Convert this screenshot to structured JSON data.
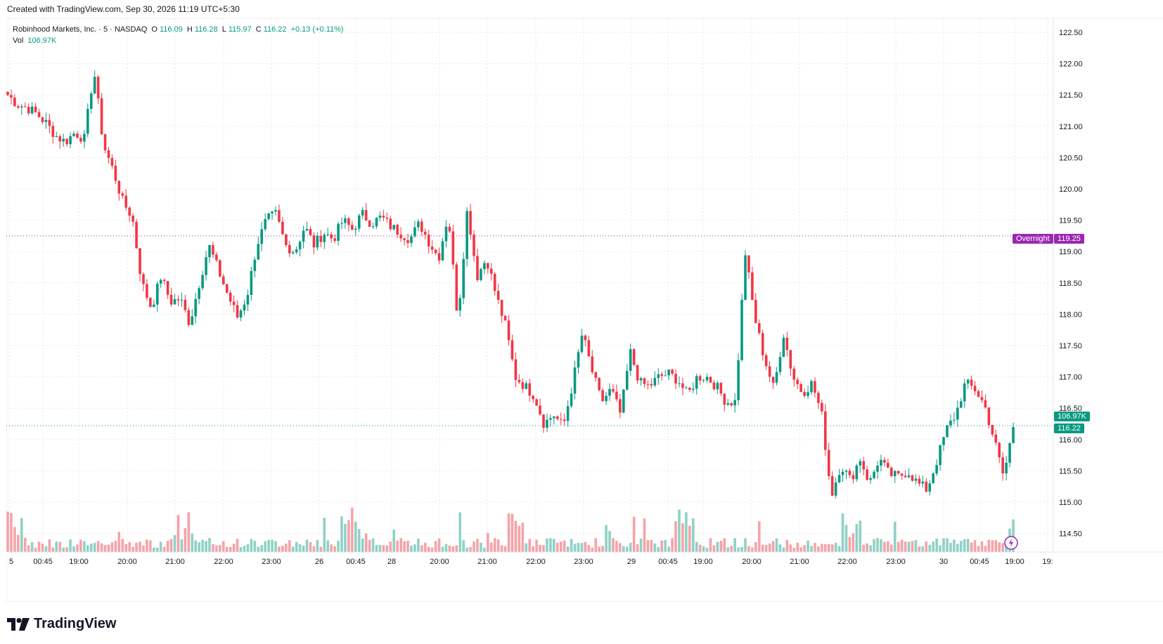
{
  "header": {
    "created_text": "Created with TradingView.com, Sep 30, 2026 11:19 UTC+5:30"
  },
  "legend": {
    "symbol": "Robinhood Markets, Inc. · 5 · NASDAQ",
    "o_label": "O",
    "o_value": "116.09",
    "h_label": "H",
    "h_value": "116.28",
    "l_label": "L",
    "l_value": "115.97",
    "c_label": "C",
    "c_value": "116.22",
    "change": "+0.13 (+0.11%)",
    "vol_label": "Vol",
    "vol_value": "106.97K"
  },
  "flags": {
    "overnight_label": "Overnight",
    "overnight_value": "119.25",
    "volume_value": "106.97K",
    "last_price": "116.22"
  },
  "footer": {
    "brand": "TradingView"
  },
  "colors": {
    "up": "#089981",
    "down": "#f23645",
    "up_vol": "#8fd1c6",
    "down_vol": "#f5a3a8",
    "overnight": "#9c27b0",
    "grid": "#e8eaee"
  },
  "chart_data": {
    "type": "candlestick",
    "symbol": "Robinhood Markets, Inc.",
    "interval": "5",
    "exchange": "NASDAQ",
    "y_axis_ticks": [
      "122.50",
      "122.00",
      "121.50",
      "121.00",
      "120.50",
      "120.00",
      "119.50",
      "119.00",
      "118.50",
      "118.00",
      "117.50",
      "117.00",
      "116.50",
      "116.00",
      "115.50",
      "115.00",
      "114.50"
    ],
    "x_axis_ticks": [
      "5",
      "00:45",
      "19:00",
      "20:00",
      "21:00",
      "22:00",
      "23:00",
      "26",
      "00:45",
      "28",
      "20:00",
      "21:00",
      "22:00",
      "23:00",
      "29",
      "00:45",
      "19:00",
      "20:00",
      "21:00",
      "22:00",
      "23:00",
      "30",
      "00:45",
      "19:00",
      "19:"
    ],
    "ylim": [
      114.2,
      122.8
    ],
    "overnight_line": 119.25,
    "last_price": 116.22,
    "grid": true,
    "close_path": [
      121.5,
      121.35,
      121.3,
      121.2,
      121.05,
      120.85,
      120.75,
      120.9,
      120.8,
      121.9,
      120.7,
      120.3,
      119.8,
      119.55,
      118.5,
      118.1,
      118.6,
      118.2,
      118.25,
      117.85,
      118.5,
      119.1,
      118.7,
      118.3,
      117.95,
      118.3,
      119.1,
      119.5,
      119.6,
      119.1,
      119.0,
      119.4,
      119.1,
      119.3,
      119.2,
      119.5,
      119.35,
      119.6,
      119.45,
      119.55,
      119.4,
      119.3,
      119.2,
      119.45,
      119.15,
      118.9,
      119.6,
      117.9,
      119.7,
      118.6,
      118.9,
      118.3,
      117.8,
      117.0,
      116.85,
      116.7,
      116.25,
      116.4,
      116.2,
      116.9,
      117.7,
      117.1,
      116.6,
      116.8,
      116.4,
      117.4,
      116.9,
      116.85,
      117.0,
      117.05,
      116.95,
      116.7,
      117.0,
      117.0,
      116.85,
      116.6,
      116.6,
      119.0,
      117.95,
      117.3,
      116.8,
      117.7,
      117.0,
      116.75,
      116.9,
      116.4,
      115.1,
      115.6,
      115.35,
      115.7,
      115.3,
      115.7,
      115.45,
      115.4,
      115.5,
      115.3,
      115.2,
      115.65,
      116.15,
      116.4,
      116.9,
      116.8,
      116.55,
      116.0,
      115.4,
      116.22
    ]
  }
}
